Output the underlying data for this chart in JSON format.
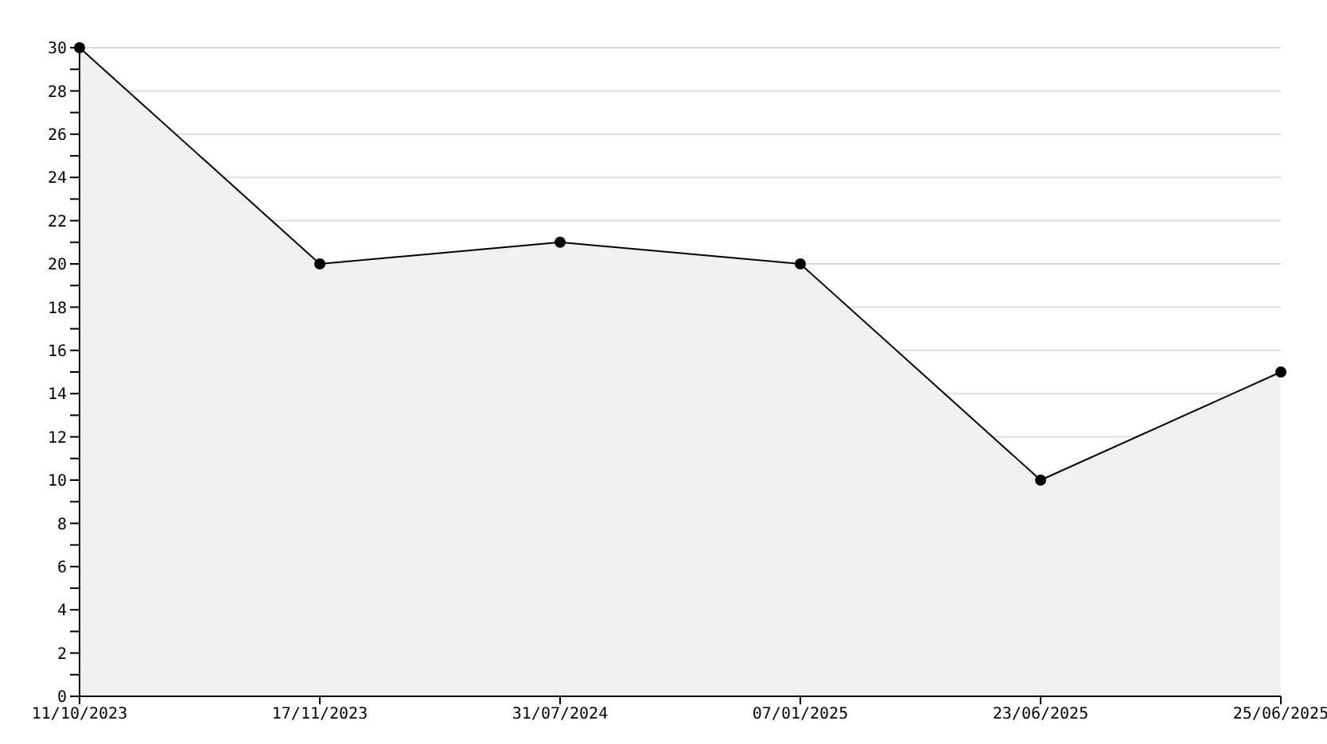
{
  "chart_data": {
    "type": "area",
    "categories": [
      "11/10/2023",
      "17/11/2023",
      "31/07/2024",
      "07/01/2025",
      "23/06/2025",
      "25/06/2025"
    ],
    "series": [
      {
        "color": "#000000",
        "values": [
          30,
          20,
          21,
          20,
          10,
          15
        ]
      }
    ],
    "ylim": [
      0,
      30
    ],
    "yticks": [
      0,
      {
        "value": 1,
        "label": null
      },
      2,
      {
        "value": 3,
        "label": null
      },
      4,
      {
        "value": 5,
        "label": null
      },
      6,
      {
        "value": 7,
        "label": null
      },
      8,
      {
        "value": 9,
        "label": null
      },
      10,
      {
        "value": 11,
        "label": null
      },
      12,
      {
        "value": 13,
        "label": null
      },
      14,
      {
        "value": 15,
        "label": null
      },
      16,
      {
        "value": 17,
        "label": null
      },
      18,
      {
        "value": 19,
        "label": null
      },
      20,
      {
        "value": 21,
        "label": null
      },
      22,
      {
        "value": 23,
        "label": null
      },
      24,
      {
        "value": 25,
        "label": null
      },
      26,
      {
        "value": 27,
        "label": null
      },
      28,
      {
        "value": 29,
        "label": null
      },
      30
    ],
    "grid": "y",
    "marker": "circle",
    "legend": false
  }
}
